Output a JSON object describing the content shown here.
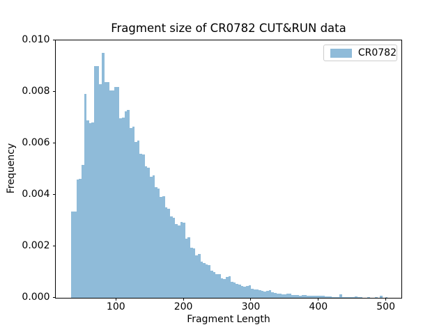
{
  "chart_data": {
    "type": "bar",
    "subtype": "histogram",
    "title": "Fragment size of CR0782 CUT&RUN data",
    "xlabel": "Fragment Length",
    "ylabel": "Frequency",
    "legend": {
      "position": "upper right",
      "entries": [
        {
          "label": "CR0782",
          "color": "#8fbbd9"
        }
      ]
    },
    "bar_color": "#8fbbd9",
    "grid": false,
    "xlim": [
      10.9,
      523.1
    ],
    "ylim": [
      0,
      0.01
    ],
    "x_ticks": [
      100,
      200,
      300,
      400,
      500
    ],
    "x_tick_labels": [
      "100",
      "200",
      "300",
      "400",
      "500"
    ],
    "y_ticks": [
      0.0,
      0.002,
      0.004,
      0.006,
      0.008,
      0.01
    ],
    "y_tick_labels": [
      "0.000",
      "0.002",
      "0.004",
      "0.006",
      "0.008",
      "0.010"
    ],
    "bins": {
      "start": 34,
      "width": 3.75,
      "count": 125
    },
    "frequencies": [
      0.00335,
      0.00335,
      0.0046,
      0.00462,
      0.00515,
      0.00793,
      0.0069,
      0.00678,
      0.0068,
      0.00899,
      0.00899,
      0.0083,
      0.00951,
      0.00837,
      0.00837,
      0.00804,
      0.00805,
      0.00818,
      0.0082,
      0.00696,
      0.007,
      0.00725,
      0.0073,
      0.0066,
      0.00665,
      0.00605,
      0.0061,
      0.0056,
      0.00555,
      0.0051,
      0.00505,
      0.0047,
      0.00475,
      0.0043,
      0.00425,
      0.0039,
      0.00395,
      0.0035,
      0.00345,
      0.00315,
      0.0031,
      0.00285,
      0.0028,
      0.00295,
      0.0029,
      0.0023,
      0.00235,
      0.00195,
      0.0019,
      0.00165,
      0.0017,
      0.0014,
      0.00135,
      0.0013,
      0.00125,
      0.00105,
      0.001,
      0.0009,
      0.00092,
      0.00075,
      0.00072,
      0.0008,
      0.00082,
      0.0006,
      0.00058,
      0.00052,
      0.0005,
      0.00044,
      0.00042,
      0.00046,
      0.00048,
      0.00034,
      0.00032,
      0.00032,
      0.0003,
      0.00026,
      0.00024,
      0.00027,
      0.00028,
      0.0002,
      0.00018,
      0.00015,
      0.00016,
      0.00013,
      0.00012,
      0.00015,
      0.00014,
      0.00011,
      0.0001,
      9e-05,
      8e-05,
      0.0001,
      9e-05,
      8e-05,
      7e-05,
      7e-05,
      6e-05,
      8e-05,
      7e-05,
      6e-05,
      5e-05,
      5e-05,
      4e-05,
      3e-05,
      3e-05,
      2e-05,
      0.00012,
      2e-05,
      1e-05,
      1e-05,
      1e-05,
      1e-05,
      5e-05,
      1e-05,
      1e-05,
      0,
      0,
      1e-05,
      0,
      0,
      1e-05,
      0,
      7e-05,
      0,
      1e-05
    ],
    "colors": {
      "bar": "#8fbbd9",
      "spine": "#000000",
      "text": "#000000",
      "legend_border": "#cccccc",
      "background": "#ffffff"
    }
  }
}
